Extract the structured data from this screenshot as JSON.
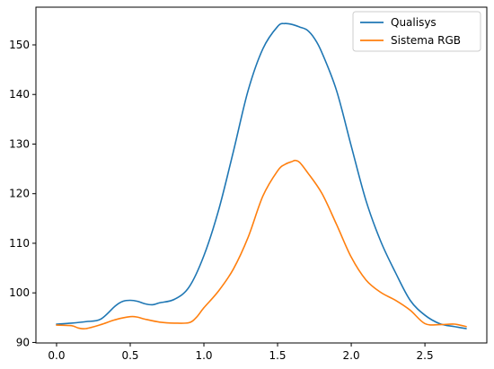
{
  "chart_data": {
    "type": "line",
    "title": "",
    "xlabel": "",
    "ylabel": "",
    "xlim": [
      -0.14,
      2.92
    ],
    "ylim": [
      89.9,
      157.6
    ],
    "xticks": [
      0.0,
      0.5,
      1.0,
      1.5,
      2.0,
      2.5
    ],
    "xtick_labels": [
      "0.0",
      "0.5",
      "1.0",
      "1.5",
      "2.0",
      "2.5"
    ],
    "yticks": [
      90,
      100,
      110,
      120,
      130,
      140,
      150
    ],
    "ytick_labels": [
      "90",
      "100",
      "110",
      "120",
      "130",
      "140",
      "150"
    ],
    "grid": false,
    "legend_position": "upper-right",
    "series": [
      {
        "name": "Qualisys",
        "color": "#1f77b4",
        "x": [
          0.0,
          0.1,
          0.2,
          0.3,
          0.4,
          0.45,
          0.5,
          0.55,
          0.6,
          0.65,
          0.7,
          0.8,
          0.9,
          1.0,
          1.1,
          1.2,
          1.3,
          1.4,
          1.5,
          1.55,
          1.6,
          1.65,
          1.7,
          1.75,
          1.8,
          1.9,
          2.0,
          2.1,
          2.2,
          2.3,
          2.4,
          2.5,
          2.6,
          2.7,
          2.78
        ],
        "y": [
          93.7,
          93.9,
          94.2,
          94.7,
          97.4,
          98.3,
          98.5,
          98.3,
          97.8,
          97.6,
          98.0,
          98.7,
          101.2,
          107.5,
          116.7,
          128.5,
          140.8,
          149.2,
          153.7,
          154.3,
          154.1,
          153.6,
          153.0,
          151.3,
          148.5,
          140.8,
          129.6,
          118.6,
          110.4,
          104.1,
          98.5,
          95.5,
          93.8,
          93.2,
          92.8
        ]
      },
      {
        "name": "Sistema RGB",
        "color": "#ff7f0e",
        "x": [
          0.0,
          0.1,
          0.15,
          0.2,
          0.3,
          0.4,
          0.5,
          0.55,
          0.6,
          0.7,
          0.8,
          0.9,
          0.95,
          1.0,
          1.1,
          1.2,
          1.3,
          1.4,
          1.5,
          1.55,
          1.6,
          1.62,
          1.65,
          1.7,
          1.8,
          1.9,
          2.0,
          2.1,
          2.2,
          2.3,
          2.4,
          2.5,
          2.6,
          2.7,
          2.78
        ],
        "y": [
          93.5,
          93.4,
          92.9,
          92.8,
          93.6,
          94.6,
          95.2,
          95.1,
          94.7,
          94.1,
          93.9,
          94.0,
          95.1,
          97.0,
          100.4,
          104.8,
          111.2,
          119.5,
          124.6,
          125.9,
          126.5,
          126.7,
          126.3,
          124.4,
          120.1,
          113.8,
          107.2,
          102.6,
          100.1,
          98.5,
          96.5,
          93.8,
          93.6,
          93.7,
          93.2
        ]
      }
    ]
  }
}
